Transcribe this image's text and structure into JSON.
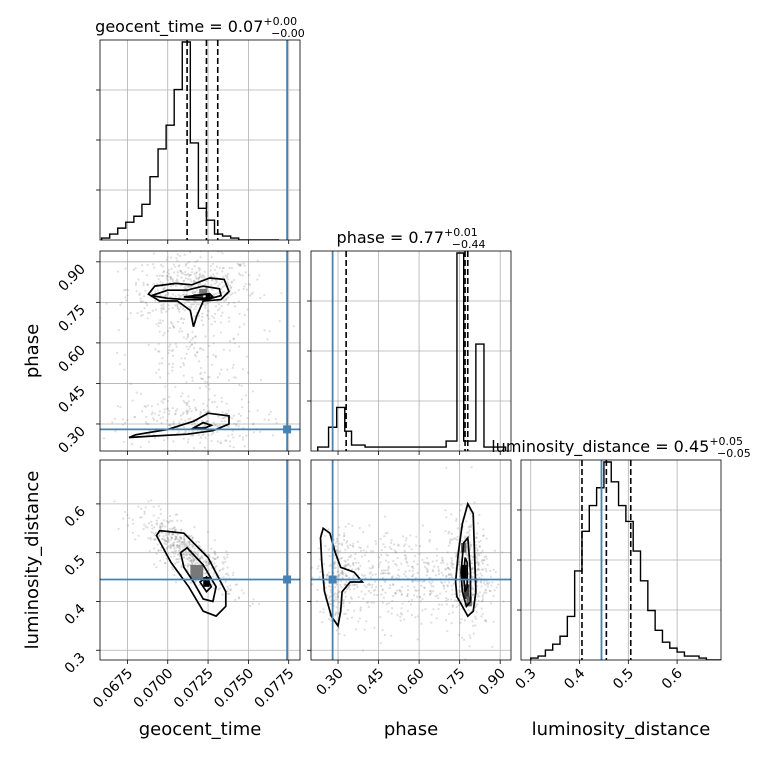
{
  "chart_data": {
    "type": "corner",
    "parameters": [
      "geocent_time",
      "phase",
      "luminosity_distance"
    ],
    "truths": {
      "geocent_time": 0.0774,
      "phase": 0.28,
      "luminosity_distance": 0.445
    },
    "grid": true,
    "colors": {
      "truth": "#4682b4",
      "hist": "#000000",
      "samples": "#888888"
    },
    "diag": [
      {
        "param": "geocent_time",
        "title": "geocent_time = 0.07",
        "title_sup": "+0.00",
        "title_sub": "−0.00",
        "range": [
          0.0658,
          0.0782
        ],
        "ticks": [
          0.0675,
          0.07,
          0.0725,
          0.075,
          0.0775
        ],
        "tick_labels": [
          "0.0675",
          "0.0700",
          "0.0725",
          "0.0750",
          "0.0775"
        ],
        "quantiles": [
          0.0712,
          0.0724,
          0.0731
        ],
        "bins": [
          0.0659,
          0.0664,
          0.0669,
          0.0674,
          0.0679,
          0.0684,
          0.0689,
          0.0694,
          0.0699,
          0.0704,
          0.0709,
          0.0714,
          0.0719,
          0.0724,
          0.0729,
          0.0734,
          0.0739,
          0.0744,
          0.0749,
          0.0754,
          0.0759,
          0.0764,
          0.0769
        ],
        "counts": [
          1,
          3,
          6,
          9,
          12,
          18,
          32,
          46,
          58,
          76,
          100,
          49,
          16,
          10,
          3,
          2,
          1,
          0,
          0,
          0,
          0,
          0
        ]
      },
      {
        "param": "phase",
        "title": "phase = 0.77",
        "title_sup": "+0.01",
        "title_sub": "−0.44",
        "range": [
          0.2,
          0.94
        ],
        "ticks": [
          0.3,
          0.45,
          0.6,
          0.75,
          0.9
        ],
        "tick_labels": [
          "0.30",
          "0.45",
          "0.60",
          "0.75",
          "0.90"
        ],
        "quantiles": [
          0.33,
          0.77,
          0.78
        ],
        "bins": [
          0.225,
          0.265,
          0.295,
          0.325,
          0.35,
          0.4,
          0.45,
          0.5,
          0.55,
          0.6,
          0.65,
          0.7,
          0.74,
          0.765,
          0.81,
          0.84,
          0.92
        ],
        "counts": [
          2,
          12,
          22,
          10,
          3,
          2,
          2,
          2,
          2,
          2,
          2,
          5,
          100,
          5,
          54,
          2
        ]
      },
      {
        "param": "luminosity_distance",
        "title": "luminosity_distance = 0.45",
        "title_sup": "+0.05",
        "title_sub": "−0.05",
        "range": [
          0.28,
          0.69
        ],
        "ticks": [
          0.3,
          0.4,
          0.5,
          0.6
        ],
        "tick_labels": [
          "0.3",
          "0.4",
          "0.5",
          "0.6"
        ],
        "quantiles": [
          0.405,
          0.455,
          0.505
        ],
        "bins": [
          0.3,
          0.315,
          0.33,
          0.345,
          0.36,
          0.375,
          0.39,
          0.405,
          0.42,
          0.435,
          0.45,
          0.465,
          0.48,
          0.495,
          0.51,
          0.525,
          0.54,
          0.555,
          0.57,
          0.585,
          0.6,
          0.615,
          0.63,
          0.645,
          0.66,
          0.69
        ],
        "counts": [
          1,
          2,
          5,
          8,
          12,
          22,
          45,
          65,
          78,
          87,
          100,
          90,
          78,
          70,
          55,
          40,
          25,
          15,
          9,
          6,
          4,
          2,
          2,
          1,
          0
        ]
      }
    ],
    "offdiag": [
      {
        "x": "geocent_time",
        "y": "phase",
        "yticks": [
          0.3,
          0.45,
          0.6,
          0.75,
          0.9
        ],
        "ytick_labels": [
          "0.30",
          "0.45",
          "0.60",
          "0.75",
          "0.90"
        ],
        "yrange": [
          0.2,
          0.94
        ],
        "clouds": [
          {
            "cx": 0.0715,
            "cy": 0.8,
            "sx": 0.002,
            "sy": 0.06,
            "n": 450
          },
          {
            "cx": 0.0715,
            "cy": 0.55,
            "sx": 0.002,
            "sy": 0.14,
            "n": 220
          },
          {
            "cx": 0.0715,
            "cy": 0.3,
            "sx": 0.0022,
            "sy": 0.045,
            "n": 220
          }
        ],
        "density": [
          {
            "x": 0.0725,
            "y": 0.77,
            "w": 0.0003,
            "h": 0.02,
            "shade": 0.0
          },
          {
            "x": 0.0719,
            "y": 0.773,
            "w": 0.0006,
            "h": 0.015,
            "shade": 0.3
          },
          {
            "x": 0.0722,
            "y": 0.79,
            "w": 0.0005,
            "h": 0.02,
            "shade": 0.6
          }
        ],
        "contours": [
          [
            [
              0.0688,
              0.78
            ],
            [
              0.0692,
              0.81
            ],
            [
              0.0705,
              0.82
            ],
            [
              0.0715,
              0.815
            ],
            [
              0.0726,
              0.84
            ],
            [
              0.0735,
              0.835
            ],
            [
              0.0738,
              0.79
            ],
            [
              0.0733,
              0.76
            ],
            [
              0.0722,
              0.755
            ],
            [
              0.0718,
              0.7
            ],
            [
              0.0716,
              0.66
            ],
            [
              0.0714,
              0.72
            ],
            [
              0.0706,
              0.755
            ],
            [
              0.0695,
              0.755
            ],
            [
              0.0688,
              0.78
            ]
          ],
          [
            [
              0.069,
              0.775
            ],
            [
              0.07,
              0.795
            ],
            [
              0.0712,
              0.795
            ],
            [
              0.0722,
              0.81
            ],
            [
              0.0732,
              0.8
            ],
            [
              0.0733,
              0.775
            ],
            [
              0.0724,
              0.76
            ],
            [
              0.0712,
              0.76
            ],
            [
              0.07,
              0.765
            ],
            [
              0.069,
              0.775
            ]
          ],
          [
            [
              0.071,
              0.77
            ],
            [
              0.0717,
              0.775
            ],
            [
              0.0726,
              0.782
            ],
            [
              0.0728,
              0.77
            ],
            [
              0.0722,
              0.765
            ],
            [
              0.071,
              0.77
            ]
          ],
          [
            [
              0.0676,
              0.25
            ],
            [
              0.068,
              0.26
            ],
            [
              0.07,
              0.28
            ],
            [
              0.0716,
              0.31
            ],
            [
              0.0725,
              0.34
            ],
            [
              0.0738,
              0.33
            ],
            [
              0.0738,
              0.3
            ],
            [
              0.0728,
              0.275
            ],
            [
              0.0712,
              0.262
            ],
            [
              0.069,
              0.255
            ],
            [
              0.0676,
              0.25
            ]
          ],
          [
            [
              0.0716,
              0.285
            ],
            [
              0.0722,
              0.305
            ],
            [
              0.0727,
              0.295
            ],
            [
              0.0723,
              0.285
            ],
            [
              0.0716,
              0.285
            ]
          ]
        ]
      },
      {
        "x": "geocent_time",
        "y": "luminosity_distance",
        "yticks": [
          0.3,
          0.4,
          0.5,
          0.6
        ],
        "ytick_labels": [
          "0.3",
          "0.4",
          "0.5",
          "0.6"
        ],
        "yrange": [
          0.28,
          0.69
        ],
        "clouds": [
          {
            "cx": 0.0712,
            "cy": 0.5,
            "sx": 0.0015,
            "sy": 0.04,
            "n": 500,
            "rho": -0.8
          }
        ],
        "density": [
          {
            "x": 0.0724,
            "y": 0.44,
            "w": 0.0004,
            "h": 0.02,
            "shade": 0.0
          },
          {
            "x": 0.0718,
            "y": 0.46,
            "w": 0.0008,
            "h": 0.03,
            "shade": 0.6
          }
        ],
        "contours": [
          [
            [
              0.0693,
              0.535
            ],
            [
              0.0695,
              0.545
            ],
            [
              0.071,
              0.54
            ],
            [
              0.0725,
              0.49
            ],
            [
              0.0736,
              0.42
            ],
            [
              0.0736,
              0.39
            ],
            [
              0.073,
              0.37
            ],
            [
              0.0722,
              0.38
            ],
            [
              0.0713,
              0.43
            ],
            [
              0.0702,
              0.48
            ],
            [
              0.0693,
              0.535
            ]
          ],
          [
            [
              0.0708,
              0.5
            ],
            [
              0.0712,
              0.51
            ],
            [
              0.0722,
              0.475
            ],
            [
              0.073,
              0.43
            ],
            [
              0.0728,
              0.4
            ],
            [
              0.0722,
              0.405
            ],
            [
              0.0716,
              0.44
            ],
            [
              0.071,
              0.47
            ],
            [
              0.0708,
              0.5
            ]
          ],
          [
            [
              0.072,
              0.44
            ],
            [
              0.0724,
              0.45
            ],
            [
              0.0727,
              0.43
            ],
            [
              0.0724,
              0.42
            ],
            [
              0.072,
              0.44
            ]
          ]
        ]
      },
      {
        "x": "phase",
        "y": "luminosity_distance",
        "yrange": [
          0.28,
          0.69
        ],
        "clouds": [
          {
            "cx": 0.3,
            "cy": 0.45,
            "sx": 0.04,
            "sy": 0.05,
            "n": 220
          },
          {
            "cx": 0.55,
            "cy": 0.45,
            "sx": 0.15,
            "sy": 0.05,
            "n": 420
          },
          {
            "cx": 0.78,
            "cy": 0.46,
            "sx": 0.04,
            "sy": 0.06,
            "n": 380
          }
        ],
        "density": [
          {
            "x": 0.765,
            "y": 0.46,
            "w": 0.02,
            "h": 0.03,
            "shade": 0.0
          },
          {
            "x": 0.775,
            "y": 0.42,
            "w": 0.02,
            "h": 0.03,
            "shade": 0.3
          },
          {
            "x": 0.765,
            "y": 0.51,
            "w": 0.02,
            "h": 0.02,
            "shade": 0.5
          },
          {
            "x": 0.785,
            "y": 0.4,
            "w": 0.02,
            "h": 0.02,
            "shade": 0.5
          }
        ],
        "contours": [
          [
            [
              0.235,
              0.53
            ],
            [
              0.24,
              0.48
            ],
            [
              0.25,
              0.42
            ],
            [
              0.275,
              0.37
            ],
            [
              0.3,
              0.35
            ],
            [
              0.31,
              0.38
            ],
            [
              0.315,
              0.42
            ],
            [
              0.345,
              0.44
            ],
            [
              0.39,
              0.44
            ],
            [
              0.36,
              0.46
            ],
            [
              0.31,
              0.47
            ],
            [
              0.29,
              0.5
            ],
            [
              0.27,
              0.54
            ],
            [
              0.245,
              0.55
            ],
            [
              0.235,
              0.53
            ]
          ],
          [
            [
              0.735,
              0.44
            ],
            [
              0.745,
              0.5
            ],
            [
              0.76,
              0.56
            ],
            [
              0.78,
              0.6
            ],
            [
              0.8,
              0.58
            ],
            [
              0.805,
              0.5
            ],
            [
              0.81,
              0.42
            ],
            [
              0.8,
              0.38
            ],
            [
              0.78,
              0.37
            ],
            [
              0.76,
              0.39
            ],
            [
              0.74,
              0.41
            ],
            [
              0.735,
              0.44
            ]
          ],
          [
            [
              0.755,
              0.46
            ],
            [
              0.765,
              0.52
            ],
            [
              0.78,
              0.53
            ],
            [
              0.79,
              0.46
            ],
            [
              0.79,
              0.4
            ],
            [
              0.775,
              0.39
            ],
            [
              0.76,
              0.42
            ],
            [
              0.755,
              0.46
            ]
          ],
          [
            [
              0.765,
              0.45
            ],
            [
              0.77,
              0.49
            ],
            [
              0.778,
              0.48
            ],
            [
              0.778,
              0.43
            ],
            [
              0.77,
              0.42
            ],
            [
              0.765,
              0.45
            ]
          ]
        ]
      }
    ]
  }
}
